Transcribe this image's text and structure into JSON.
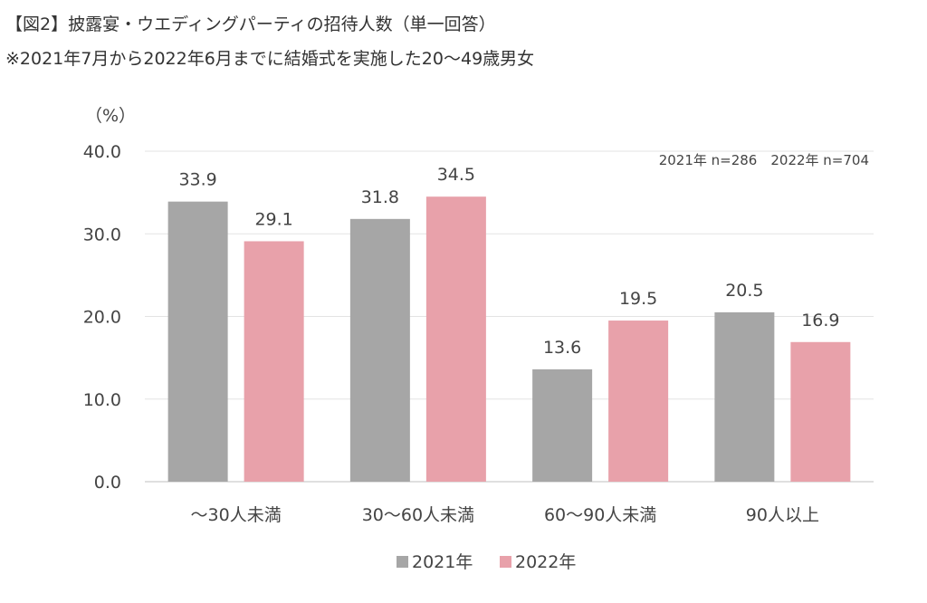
{
  "header": {
    "title": "【図2】披露宴・ウエディングパーティの招待人数（単一回答）",
    "subtitle": "※2021年7月から2022年6月までに結婚式を実施した20〜49歳男女"
  },
  "chart_data": {
    "type": "bar",
    "unit_label": "（%）",
    "categories": [
      "〜30人未満",
      "30〜60人未満",
      "60〜90人未満",
      "90人以上"
    ],
    "series": [
      {
        "name": "2021年",
        "values": [
          33.9,
          31.8,
          13.6,
          20.5
        ],
        "color": "#a6a6a6"
      },
      {
        "name": "2022年",
        "values": [
          29.1,
          34.5,
          19.5,
          16.9
        ],
        "color": "#e8a1aa"
      }
    ],
    "value_labels": [
      [
        "33.9",
        "31.8",
        "13.6",
        "20.5"
      ],
      [
        "29.1",
        "34.5",
        "19.5",
        "16.9"
      ]
    ],
    "ylim": [
      0,
      40
    ],
    "yticks": [
      "0.0",
      "10.0",
      "20.0",
      "30.0",
      "40.0"
    ],
    "ytick_values": [
      0,
      10,
      20,
      30,
      40
    ],
    "grid": true,
    "sample_note": "2021年 n=286　2022年 n=704",
    "legend_position": "bottom-center"
  }
}
